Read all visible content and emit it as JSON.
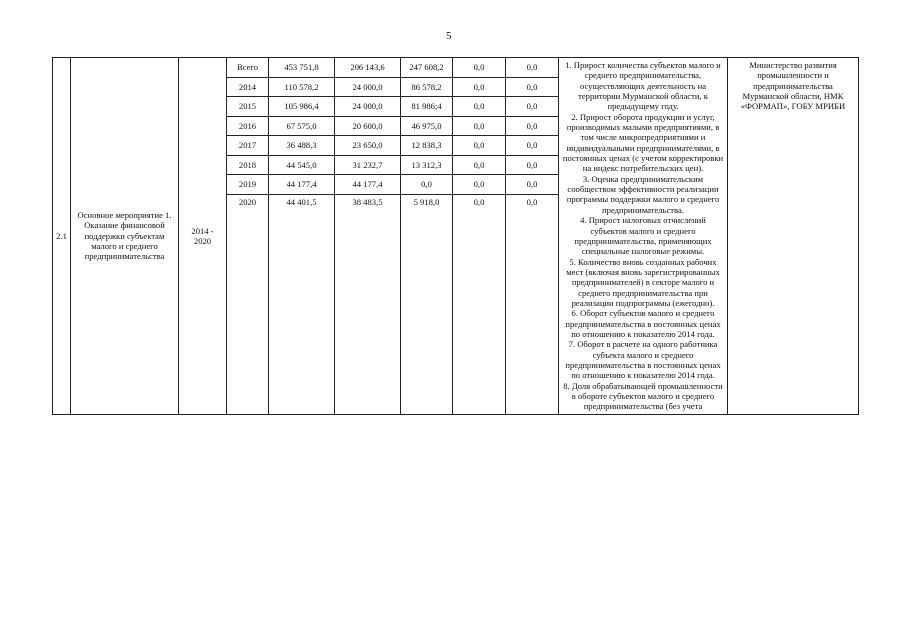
{
  "page_number": "5",
  "row": {
    "number": "2.1",
    "activity": "Основное мероприятие 1. Оказание финансовой поддержки субъектам малого и среднего предпринимательства",
    "period": "2014 - 2020",
    "funding": [
      {
        "year": "Всего",
        "total": "453 751,8",
        "c1": "206 143,6",
        "c2": "247 608,2",
        "c3": "0,0",
        "c4": "0,0"
      },
      {
        "year": "2014",
        "total": "110 578,2",
        "c1": "24 000,0",
        "c2": "86 578,2",
        "c3": "0,0",
        "c4": "0,0"
      },
      {
        "year": "2015",
        "total": "105 986,4",
        "c1": "24 000,0",
        "c2": "81 986;4",
        "c3": "0,0",
        "c4": "0,0"
      },
      {
        "year": "2016",
        "total": "67 575,0",
        "c1": "20 600,0",
        "c2": "46 975,0",
        "c3": "0,0",
        "c4": "0,0"
      },
      {
        "year": "2017",
        "total": "36 488,3",
        "c1": "23 650,0",
        "c2": "12 838,3",
        "c3": "0,0",
        "c4": "0,0"
      },
      {
        "year": "2018",
        "total": "44 545,0",
        "c1": "31 232,7",
        "c2": "13 312,3",
        "c3": "0,0",
        "c4": "0,0"
      },
      {
        "year": "2019",
        "total": "44 177,4",
        "c1": "44 177,4",
        "c2": "0,0",
        "c3": "0,0",
        "c4": "0,0"
      },
      {
        "year": "2020",
        "total": "44 401,5",
        "c1": "38 483,5",
        "c2": "5 918,0",
        "c3": "0,0",
        "c4": "0,0"
      }
    ],
    "indicators": [
      "1. Прирост количества субъектов малого и среднего предпринимательства, осуществляющих деятельность на территории Мурманской области, к предыдущему году.",
      "2. Прирост оборота продукции и услуг, производимых малыми предприятиями, в том числе микропредприятиями и индивидуальными предпринимателями, в постоянных ценах (с учетом корректировки на индекс потребительских цен).",
      "3. Оценка предпринимательским сообществом эффективности реализации программы поддержки малого и среднего предпринимательства.",
      "4. Прирост налоговых отчислений субъектов малого и среднего предпринимательства, применяющих специальные налоговые режимы.",
      "5. Количество вновь созданных рабочих мест (включая вновь зарегистрированных предпринимателей) в секторе малого и среднего предпринимательства при реализации подпрограммы (ежегодно).",
      "6. Оборот субъектов малого и среднего предпринимательства в постоянных ценах по отношению к показателю 2014 года.",
      "7. Оборот в расчете на одного работника субъекта малого и среднего предпринимательства в постоянных ценах по отношению к показателю 2014 года.",
      "8. Доля обрабатывающей промышленности в обороте субъектов малого и среднего предпринимательства (без учета"
    ],
    "responsible": "Министерство развития промышленности и предпринимательства Мурманской области, НМК «ФОРМАП», ГОБУ МРИБИ"
  }
}
